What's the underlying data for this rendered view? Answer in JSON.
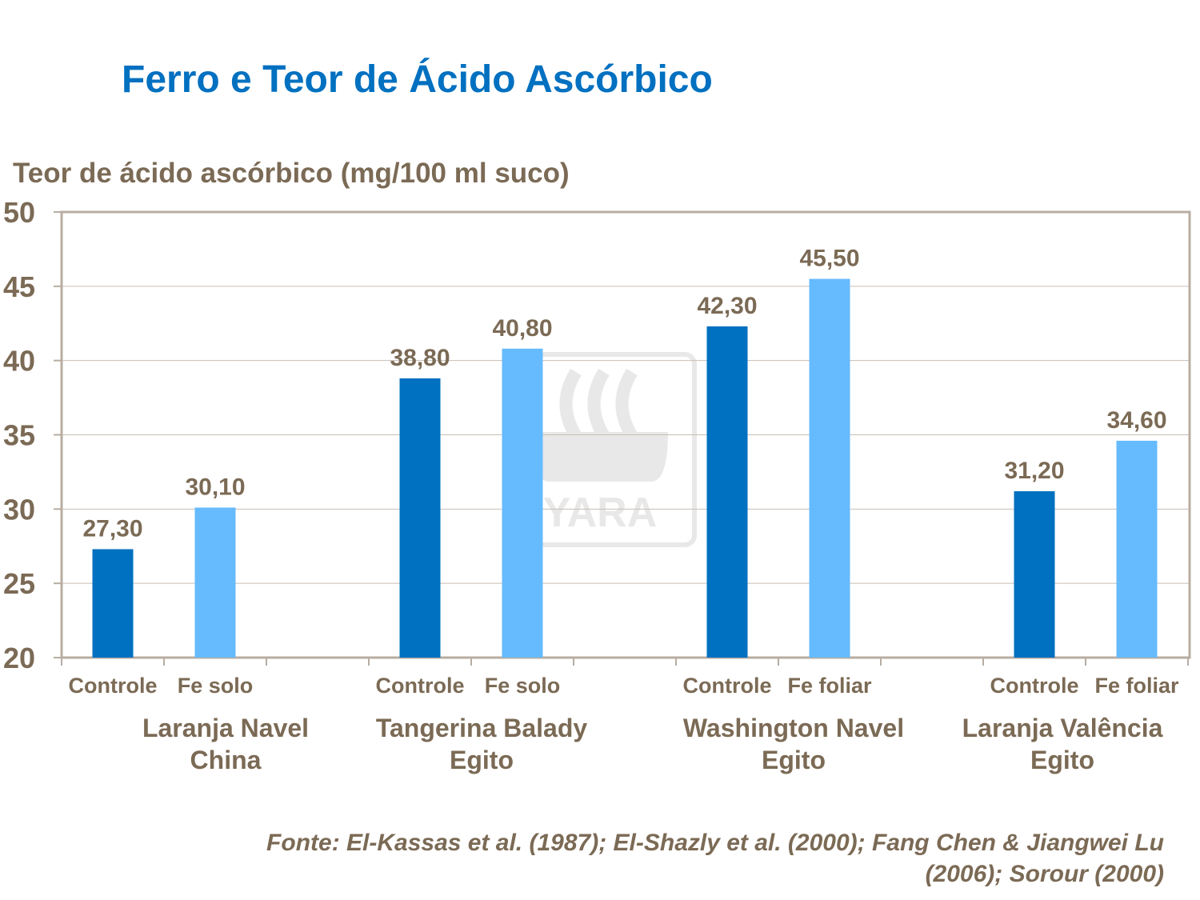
{
  "title": "Ferro e Teor de Ácido Ascórbico",
  "source": [
    "Fonte: El-Kassas  et al. (1987); El-Shazly  et al. (2000); Fang Chen & Jiangwei Lu",
    "(2006); Sorour (2000)"
  ],
  "watermark": "YARA",
  "colors": {
    "title": "#0070C0",
    "controle": "#0070C0",
    "fe": "#66BBFF",
    "text": "#7B6A55",
    "axis": "#B8ADA2",
    "grid": "#C8BEB4"
  },
  "chart_data": {
    "type": "bar",
    "ylabel": "Teor de ácido ascórbico (mg/100 ml suco)",
    "ylim": [
      20,
      50
    ],
    "yticks": [
      20,
      25,
      30,
      35,
      40,
      45,
      50
    ],
    "grid": true,
    "groups": [
      {
        "name": [
          "Laranja Navel",
          "China"
        ],
        "bars": [
          {
            "label": "Controle",
            "value": 27.3,
            "text": "27,30"
          },
          {
            "label": "Fe solo",
            "value": 30.1,
            "text": "30,10"
          }
        ]
      },
      {
        "name": [
          "Tangerina Balady",
          "Egito"
        ],
        "bars": [
          {
            "label": "Controle",
            "value": 38.8,
            "text": "38,80"
          },
          {
            "label": "Fe solo",
            "value": 40.8,
            "text": "40,80"
          }
        ]
      },
      {
        "name": [
          "Washington Navel",
          "Egito"
        ],
        "bars": [
          {
            "label": "Controle",
            "value": 42.3,
            "text": "42,30"
          },
          {
            "label": "Fe foliar",
            "value": 45.5,
            "text": "45,50"
          }
        ]
      },
      {
        "name": [
          "Laranja Valência",
          "Egito"
        ],
        "bars": [
          {
            "label": "Controle",
            "value": 31.2,
            "text": "31,20"
          },
          {
            "label": "Fe foliar",
            "value": 34.6,
            "text": "34,60"
          }
        ]
      }
    ]
  }
}
